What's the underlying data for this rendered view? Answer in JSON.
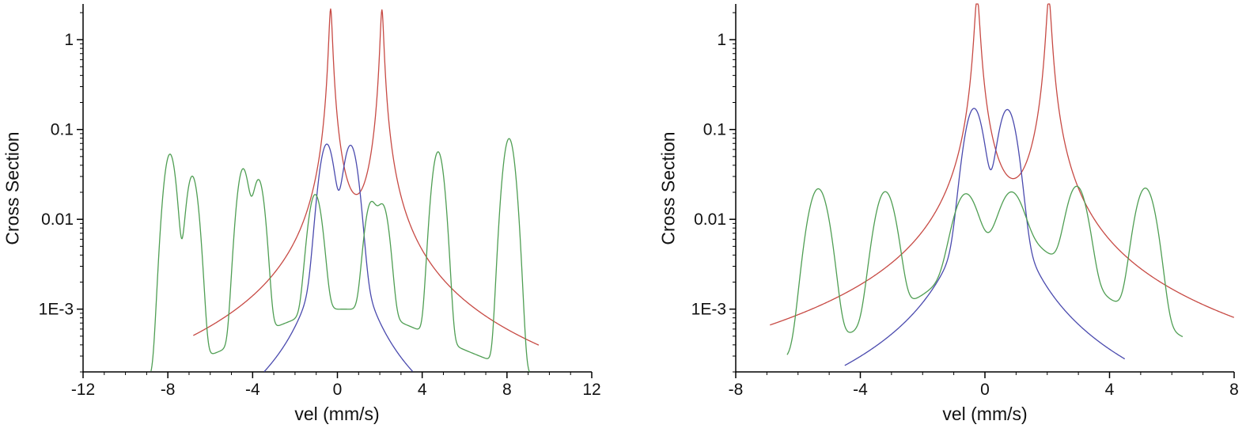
{
  "chart_data": [
    {
      "type": "line",
      "title": "",
      "xlabel": "vel (mm/s)",
      "ylabel": "Cross Section",
      "xlim": [
        -12,
        12
      ],
      "xticks": [
        -12,
        -8,
        -4,
        0,
        4,
        8,
        12
      ],
      "x_minor_step": 1,
      "yscale": "log",
      "ylim": [
        0.0002,
        2.5
      ],
      "yticks": [
        {
          "v": 0.001,
          "label": "1E-3"
        },
        {
          "v": 0.01,
          "label": "0.01"
        },
        {
          "v": 0.1,
          "label": "0.1"
        },
        {
          "v": 1,
          "label": "1"
        }
      ],
      "grid": false,
      "legend": "none",
      "series": [
        {
          "name": "red-lorentzian-doublet",
          "color": "#c74a44",
          "xrange": [
            -6.8,
            9.5
          ],
          "peaks": [
            {
              "c": -0.32,
              "a": 2.2,
              "gl": 0.08,
              "eta": 1
            },
            {
              "c": 2.1,
              "a": 2.15,
              "gl": 0.08,
              "eta": 1
            }
          ]
        },
        {
          "name": "blue-doublet",
          "color": "#4a4aae",
          "xrange": [
            -4,
            4
          ],
          "peaks": [
            {
              "c": -0.5,
              "a": 0.068,
              "sg": 0.28,
              "gl": 0.5,
              "eta": 0.07
            },
            {
              "c": 0.62,
              "a": 0.066,
              "sg": 0.28,
              "gl": 0.5,
              "eta": 0.07
            }
          ]
        },
        {
          "name": "green-sextet",
          "color": "#4f9e53",
          "xrange": [
            -9.6,
            9.8
          ],
          "peaks": [
            {
              "c": -7.9,
              "a": 0.053,
              "sg": 0.23
            },
            {
              "c": -6.85,
              "a": 0.03,
              "sg": 0.23
            },
            {
              "c": -4.45,
              "a": 0.036,
              "sg": 0.23
            },
            {
              "c": -3.72,
              "a": 0.027,
              "sg": 0.23
            },
            {
              "c": -1.05,
              "a": 0.018,
              "sg": 0.26
            },
            {
              "c": 1.58,
              "a": 0.014,
              "sg": 0.24
            },
            {
              "c": 2.15,
              "a": 0.013,
              "sg": 0.24
            },
            {
              "c": 4.75,
              "a": 0.056,
              "sg": 0.23
            },
            {
              "c": 8.1,
              "a": 0.079,
              "sg": 0.23
            },
            {
              "c": 0.3,
              "a": 0.001,
              "gl": 4.2,
              "eta": 1
            }
          ]
        }
      ]
    },
    {
      "type": "line",
      "title": "",
      "xlabel": "vel (mm/s)",
      "ylabel": "Cross Section",
      "xlim": [
        -8,
        8
      ],
      "xticks": [
        -8,
        -4,
        0,
        4,
        8
      ],
      "x_minor_step": 1,
      "yscale": "log",
      "ylim": [
        0.0002,
        2.5
      ],
      "yticks": [
        {
          "v": 0.001,
          "label": "1E-3"
        },
        {
          "v": 0.01,
          "label": "0.01"
        },
        {
          "v": 0.1,
          "label": "0.1"
        },
        {
          "v": 1,
          "label": "1"
        }
      ],
      "grid": false,
      "legend": "none",
      "series": [
        {
          "name": "red-lorentzian-doublet",
          "color": "#c74a44",
          "xrange": [
            -6.9,
            8
          ],
          "peaks": [
            {
              "c": -0.25,
              "a": 3.0,
              "gl": 0.08,
              "eta": 1
            },
            {
              "c": 2.05,
              "a": 2.9,
              "gl": 0.08,
              "eta": 1
            }
          ]
        },
        {
          "name": "blue-doublet",
          "color": "#4a4aae",
          "xrange": [
            -4.5,
            4.5
          ],
          "peaks": [
            {
              "c": -0.35,
              "a": 0.17,
              "sg": 0.24,
              "gl": 0.5,
              "eta": 0.06
            },
            {
              "c": 0.72,
              "a": 0.165,
              "sg": 0.24,
              "gl": 0.5,
              "eta": 0.06
            }
          ]
        },
        {
          "name": "green-sextet",
          "color": "#4f9e53",
          "xrange": [
            -6.35,
            6.35
          ],
          "peaks": [
            {
              "c": -5.35,
              "a": 0.0215,
              "sg": 0.27
            },
            {
              "c": -3.2,
              "a": 0.0195,
              "sg": 0.27
            },
            {
              "c": -0.62,
              "a": 0.016,
              "sg": 0.32
            },
            {
              "c": 0.85,
              "a": 0.014,
              "sg": 0.32
            },
            {
              "c": 2.95,
              "a": 0.021,
              "sg": 0.27
            },
            {
              "c": 5.15,
              "a": 0.0215,
              "sg": 0.27
            },
            {
              "c": 0.9,
              "a": 0.0062,
              "gl": 1.6,
              "eta": 1
            }
          ]
        }
      ]
    }
  ]
}
